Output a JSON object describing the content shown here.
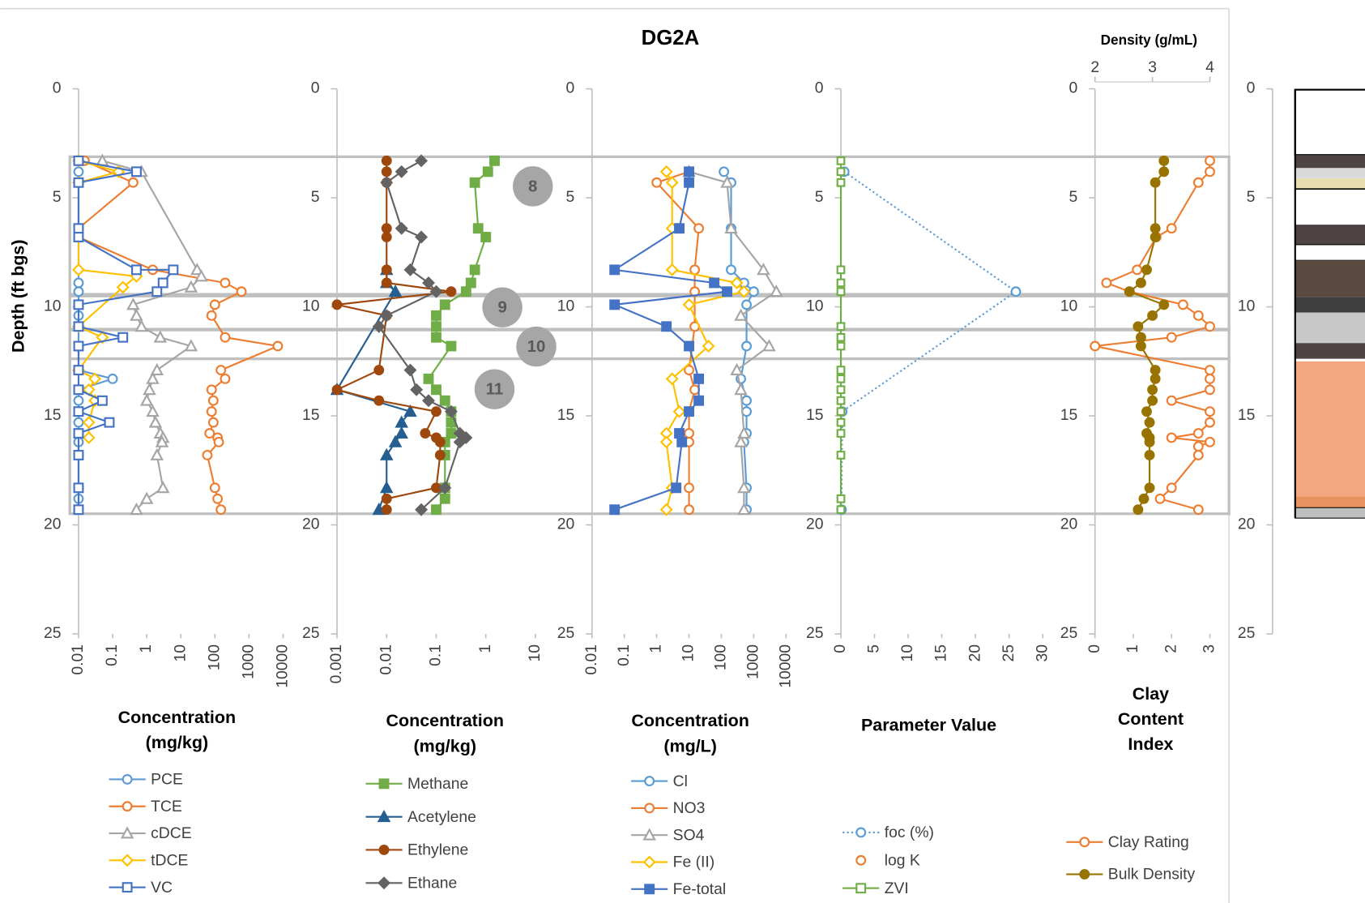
{
  "chart_data": [
    {
      "type": "line",
      "xscale": "log",
      "y_inverted": true,
      "ylabel": "Depth (ft bgs)",
      "xlabel": [
        "Concentration",
        "(mg/kg)"
      ],
      "xlim": [
        0.01,
        10000
      ],
      "xticks": [
        0.01,
        0.1,
        1,
        10,
        100,
        1000,
        10000
      ],
      "ylim": [
        0,
        25
      ],
      "yticks": [
        0,
        5,
        10,
        15,
        20,
        25
      ],
      "series": [
        {
          "name": "PCE",
          "color": "#5b9bd5",
          "marker": "circle",
          "filled": false,
          "line": "solid",
          "y": [
            3.3,
            3.8,
            4.3,
            8.9,
            9.3,
            9.9,
            10.4,
            11.8,
            12.9,
            13.3,
            13.8,
            14.3,
            14.8,
            15.3,
            15.8,
            16.2,
            16.8,
            18.3,
            18.8,
            19.3
          ],
          "x": [
            0.01,
            0.01,
            0.01,
            0.01,
            0.01,
            0.01,
            0.01,
            0.01,
            0.01,
            0.1,
            0.01,
            0.01,
            0.01,
            0.01,
            0.01,
            0.01,
            0.01,
            0.01,
            0.01,
            0.01
          ]
        },
        {
          "name": "TCE",
          "color": "#ed7d31",
          "marker": "circle",
          "filled": false,
          "line": "solid",
          "y": [
            3.3,
            4.3,
            6.4,
            6.8,
            8.3,
            8.9,
            9.3,
            9.9,
            10.4,
            11.4,
            11.8,
            12.9,
            13.3,
            13.8,
            14.3,
            14.8,
            15.3,
            15.8,
            16.0,
            16.2,
            16.8,
            18.3,
            18.8,
            19.3
          ],
          "x": [
            0.015,
            0.4,
            0.01,
            0.01,
            1.5,
            200,
            600,
            100,
            80,
            200,
            7000,
            150,
            200,
            80,
            90,
            80,
            90,
            70,
            120,
            130,
            60,
            100,
            120,
            150
          ]
        },
        {
          "name": "cDCE",
          "color": "#a5a5a5",
          "marker": "triangle",
          "filled": false,
          "line": "solid",
          "y": [
            3.3,
            3.8,
            8.3,
            8.6,
            9.1,
            9.9,
            10.4,
            10.9,
            11.4,
            11.8,
            12.9,
            13.3,
            13.8,
            14.3,
            14.8,
            15.3,
            15.8,
            16.0,
            16.2,
            16.8,
            18.3,
            18.8,
            19.3
          ],
          "x": [
            0.05,
            0.7,
            30,
            40,
            20,
            0.4,
            0.5,
            0.7,
            2.5,
            20,
            2,
            1.5,
            1.2,
            1,
            1.5,
            1.8,
            2.5,
            3,
            2.8,
            2,
            3,
            1,
            0.5
          ]
        },
        {
          "name": "tDCE",
          "color": "#ffc000",
          "marker": "diamond",
          "filled": false,
          "line": "solid",
          "y": [
            3.3,
            3.8,
            4.3,
            8.3,
            8.6,
            9.1,
            10.9,
            11.4,
            12.9,
            13.3,
            13.8,
            14.3,
            15.3,
            16.0
          ],
          "x": [
            0.01,
            0.15,
            0.01,
            0.01,
            0.5,
            0.2,
            0.01,
            0.05,
            0.01,
            0.03,
            0.02,
            0.03,
            0.02,
            0.02
          ]
        },
        {
          "name": "VC",
          "color": "#4472c4",
          "marker": "square",
          "filled": false,
          "line": "solid",
          "y": [
            3.3,
            3.8,
            4.3,
            6.4,
            6.8,
            8.3,
            8.3,
            8.9,
            9.3,
            9.9,
            10.9,
            11.4,
            11.8,
            12.9,
            13.8,
            14.3,
            14.8,
            15.3,
            15.8,
            16.8,
            18.3,
            19.3
          ],
          "x": [
            0.01,
            0.5,
            0.01,
            0.01,
            0.01,
            0.5,
            6,
            3,
            2,
            0.01,
            0.01,
            0.2,
            0.01,
            0.01,
            0.01,
            0.05,
            0.01,
            0.08,
            0.01,
            0.01,
            0.01,
            0.01
          ]
        }
      ]
    },
    {
      "type": "line",
      "xscale": "log",
      "y_inverted": true,
      "xlabel": [
        "Concentration",
        "(mg/kg)"
      ],
      "xlim": [
        0.001,
        10
      ],
      "xticks": [
        0.001,
        0.01,
        0.1,
        1,
        10
      ],
      "ylim": [
        0,
        25
      ],
      "yticks": [
        0,
        5,
        10,
        15,
        20,
        25
      ],
      "annotations": [
        "8",
        "9",
        "10",
        "11"
      ],
      "series": [
        {
          "name": "Methane",
          "color": "#70ad47",
          "marker": "square",
          "filled": true,
          "line": "solid",
          "y": [
            3.3,
            3.8,
            4.3,
            6.4,
            6.8,
            8.3,
            8.9,
            9.3,
            9.9,
            10.4,
            10.9,
            11.4,
            11.8,
            13.3,
            13.8,
            14.3,
            14.8,
            15.3,
            15.8,
            16.2,
            16.8,
            18.3,
            18.8,
            19.3
          ],
          "x": [
            1.5,
            1.1,
            0.6,
            0.7,
            1.0,
            0.6,
            0.5,
            0.4,
            0.15,
            0.1,
            0.1,
            0.1,
            0.2,
            0.07,
            0.1,
            0.15,
            0.2,
            0.2,
            0.2,
            0.15,
            0.15,
            0.15,
            0.15,
            0.1
          ]
        },
        {
          "name": "Acetylene",
          "color": "#255e91",
          "marker": "triangle",
          "filled": true,
          "line": "solid",
          "y": [
            8.3,
            8.9,
            9.3,
            13.8,
            14.8,
            15.3,
            15.8,
            16.2,
            16.8,
            18.3,
            19.3
          ],
          "x": [
            0.01,
            0.01,
            0.015,
            0.001,
            0.03,
            0.02,
            0.02,
            0.015,
            0.01,
            0.01,
            0.007
          ]
        },
        {
          "name": "Ethylene",
          "color": "#9e480e",
          "marker": "circle",
          "filled": true,
          "line": "solid",
          "y": [
            3.3,
            3.8,
            4.3,
            6.4,
            6.8,
            8.3,
            8.9,
            9.3,
            9.9,
            10.4,
            12.9,
            13.8,
            14.3,
            14.8,
            15.8,
            16.0,
            16.2,
            16.8,
            18.3,
            18.8,
            19.3
          ],
          "x": [
            0.01,
            0.01,
            0.01,
            0.01,
            0.01,
            0.01,
            0.01,
            0.2,
            0.001,
            0.01,
            0.007,
            0.001,
            0.007,
            0.1,
            0.06,
            0.1,
            0.12,
            0.12,
            0.1,
            0.01,
            0.01
          ]
        },
        {
          "name": "Ethane",
          "color": "#636363",
          "marker": "diamond",
          "filled": true,
          "line": "solid",
          "y": [
            3.3,
            3.8,
            4.3,
            6.4,
            6.8,
            8.3,
            8.9,
            9.3,
            10.4,
            10.9,
            12.9,
            13.8,
            14.3,
            14.8,
            15.8,
            16.0,
            16.2,
            18.3,
            19.3
          ],
          "x": [
            0.05,
            0.02,
            0.01,
            0.02,
            0.05,
            0.03,
            0.07,
            0.1,
            0.01,
            0.007,
            0.03,
            0.04,
            0.07,
            0.2,
            0.3,
            0.4,
            0.3,
            0.15,
            0.05
          ]
        }
      ]
    },
    {
      "type": "line",
      "xscale": "log",
      "y_inverted": true,
      "title": "DG2A",
      "xlabel": [
        "Concentration",
        "(mg/L)"
      ],
      "xlim": [
        0.01,
        10000
      ],
      "xticks": [
        0.01,
        0.1,
        1,
        10,
        100,
        1000,
        10000
      ],
      "ylim": [
        0,
        25
      ],
      "yticks": [
        0,
        5,
        10,
        15,
        20,
        25
      ],
      "series": [
        {
          "name": "Cl",
          "color": "#5b9bd5",
          "marker": "circle",
          "filled": false,
          "line": "solid",
          "y": [
            3.8,
            4.3,
            6.4,
            8.3,
            8.9,
            9.3,
            9.9,
            11.8,
            13.3,
            14.3,
            14.8,
            15.8,
            16.2,
            18.3,
            19.3
          ],
          "x": [
            120,
            200,
            200,
            200,
            500,
            1000,
            600,
            600,
            400,
            600,
            600,
            600,
            500,
            600,
            600
          ]
        },
        {
          "name": "NO3",
          "color": "#ed7d31",
          "marker": "circle",
          "filled": false,
          "line": "solid",
          "y": [
            3.8,
            4.3,
            6.4,
            8.3,
            9.3,
            10.9,
            12.9,
            13.8,
            14.8,
            15.8,
            16.2,
            18.3,
            19.3
          ],
          "x": [
            10,
            1,
            20,
            15,
            15,
            15,
            10,
            15,
            10,
            10,
            10,
            10,
            10
          ]
        },
        {
          "name": "SO4",
          "color": "#a5a5a5",
          "marker": "triangle",
          "filled": false,
          "line": "solid",
          "y": [
            3.8,
            4.3,
            6.4,
            8.3,
            9.3,
            10.4,
            11.8,
            12.9,
            13.8,
            15.8,
            16.2,
            18.3,
            19.3
          ],
          "x": [
            10,
            150,
            200,
            2000,
            5000,
            400,
            3000,
            300,
            400,
            500,
            400,
            500,
            500
          ]
        },
        {
          "name": "Fe (II)",
          "color": "#ffc000",
          "marker": "diamond",
          "filled": false,
          "line": "solid",
          "y": [
            3.8,
            4.3,
            6.4,
            8.3,
            8.9,
            9.3,
            9.9,
            11.8,
            13.3,
            14.8,
            15.8,
            16.2,
            18.3,
            19.3
          ],
          "x": [
            2,
            3,
            3,
            3,
            300,
            500,
            10,
            40,
            3,
            5,
            2,
            2,
            3,
            2
          ]
        },
        {
          "name": "Fe-total",
          "color": "#4472c4",
          "marker": "square",
          "filled": true,
          "line": "solid",
          "y": [
            3.8,
            4.3,
            6.4,
            8.3,
            8.9,
            9.3,
            9.9,
            10.9,
            11.8,
            13.3,
            14.3,
            14.8,
            15.8,
            16.2,
            18.3,
            19.3
          ],
          "x": [
            10,
            10,
            5,
            0.05,
            60,
            150,
            0.05,
            2,
            10,
            20,
            20,
            10,
            5,
            6,
            4,
            0.05
          ]
        }
      ]
    },
    {
      "type": "line",
      "xscale": "linear",
      "y_inverted": true,
      "xlabel": [
        "Parameter Value"
      ],
      "xlim": [
        0,
        30
      ],
      "xticks": [
        0,
        5,
        10,
        15,
        20,
        25,
        30
      ],
      "ylim": [
        0,
        25
      ],
      "yticks": [
        0,
        5,
        10,
        15,
        20,
        25
      ],
      "series": [
        {
          "name": "foc (%)",
          "color": "#5b9bd5",
          "marker": "circle",
          "filled": false,
          "line": "dotted",
          "y": [
            3.8,
            9.3,
            14.8,
            19.3
          ],
          "x": [
            0.5,
            26,
            0.2,
            0.1
          ]
        },
        {
          "name": "log K",
          "color": "#ed7d31",
          "marker": "circle",
          "filled": false,
          "line": "none",
          "y": [],
          "x": []
        },
        {
          "name": "ZVI",
          "color": "#70ad47",
          "marker": "square",
          "filled": false,
          "line": "solid",
          "y": [
            3.3,
            3.8,
            4.3,
            8.3,
            8.9,
            9.3,
            10.9,
            11.4,
            11.8,
            12.9,
            13.3,
            13.8,
            14.3,
            14.8,
            15.3,
            15.8,
            16.8,
            18.8,
            19.3
          ],
          "x": [
            0,
            0,
            0,
            0,
            0,
            0,
            0,
            0,
            0,
            0,
            0,
            0,
            0,
            0,
            0,
            0,
            0,
            0,
            0
          ]
        }
      ]
    },
    {
      "type": "line",
      "xscale": "linear",
      "y_inverted": true,
      "xlabel": [
        "Clay",
        "Content",
        "Index"
      ],
      "xlim": [
        0,
        3
      ],
      "xticks": [
        0,
        1,
        2,
        3
      ],
      "x2label": "Density (g/mL)",
      "x2lim": [
        2,
        4
      ],
      "x2ticks": [
        2,
        3,
        4
      ],
      "ylim": [
        0,
        25
      ],
      "yticks": [
        0,
        5,
        10,
        15,
        20,
        25
      ],
      "series": [
        {
          "name": "Clay Rating",
          "color": "#ed7d31",
          "marker": "circle",
          "filled": false,
          "line": "solid",
          "y": [
            3.3,
            3.8,
            4.3,
            6.4,
            6.8,
            8.3,
            8.9,
            9.3,
            9.9,
            10.4,
            10.9,
            11.4,
            11.8,
            12.9,
            13.3,
            13.8,
            14.3,
            14.8,
            15.3,
            15.8,
            16.0,
            16.2,
            16.4,
            16.8,
            18.3,
            18.8,
            19.3
          ],
          "x": [
            3,
            3,
            2.7,
            2,
            1.6,
            1.1,
            0.3,
            0.9,
            2.3,
            2.7,
            3,
            2,
            0,
            3,
            3,
            3,
            2,
            3,
            3,
            2.7,
            2,
            3,
            2.7,
            2.7,
            2,
            1.7,
            2.7
          ]
        },
        {
          "name": "Bulk Density",
          "color": "#997300",
          "marker": "circle",
          "filled": true,
          "line": "solid",
          "axis": "x2",
          "y": [
            3.3,
            3.8,
            4.3,
            6.4,
            6.8,
            8.3,
            8.9,
            9.3,
            9.9,
            10.4,
            10.9,
            11.4,
            11.8,
            12.9,
            13.3,
            13.8,
            14.3,
            14.8,
            15.3,
            15.8,
            16.0,
            16.2,
            16.8,
            18.3,
            18.8,
            19.3
          ],
          "x": [
            3.2,
            3.2,
            3.05,
            3.05,
            3.05,
            2.9,
            2.8,
            2.6,
            3.2,
            3.0,
            2.75,
            2.8,
            2.8,
            3.05,
            3.05,
            3.0,
            3.0,
            2.9,
            2.95,
            2.9,
            2.95,
            2.95,
            2.95,
            2.95,
            2.85,
            2.75
          ]
        }
      ]
    },
    {
      "type": "lithology",
      "y_inverted": true,
      "ylim": [
        0,
        25
      ],
      "yticks": [
        0,
        5,
        10,
        15,
        20,
        25
      ]
    }
  ]
}
